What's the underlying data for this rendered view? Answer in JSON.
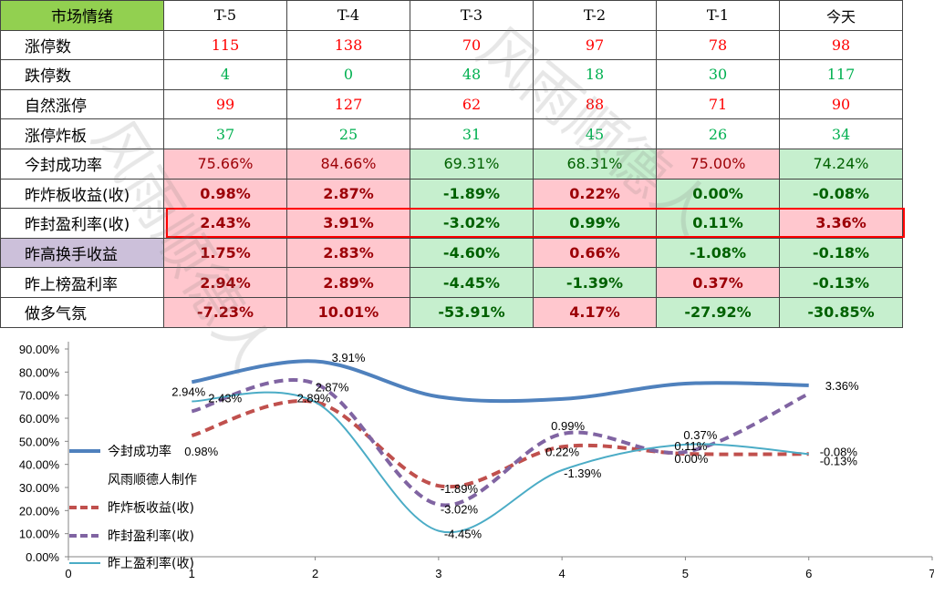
{
  "table": {
    "header": [
      "市场情绪",
      "T-5",
      "T-4",
      "T-3",
      "T-2",
      "T-1",
      "今天"
    ],
    "count_rows": [
      {
        "label": "涨停数",
        "values": [
          "115",
          "138",
          "70",
          "97",
          "78",
          "98"
        ],
        "color": "red"
      },
      {
        "label": "跌停数",
        "values": [
          "4",
          "0",
          "48",
          "18",
          "30",
          "117"
        ],
        "color": "green"
      },
      {
        "label": "自然涨停",
        "values": [
          "99",
          "127",
          "62",
          "88",
          "71",
          "90"
        ],
        "color": "red"
      },
      {
        "label": "涨停炸板",
        "values": [
          "37",
          "25",
          "31",
          "45",
          "26",
          "34"
        ],
        "color": "green"
      }
    ],
    "pct_rows": [
      {
        "label": "今封成功率",
        "values": [
          "75.66%",
          "84.66%",
          "69.31%",
          "68.31%",
          "75.00%",
          "74.24%"
        ],
        "signs": [
          "pos",
          "pos",
          "neg",
          "neg",
          "pos",
          "neg"
        ],
        "bold": false,
        "label_purple": false
      },
      {
        "label": "昨炸板收益(收)",
        "values": [
          "0.98%",
          "2.87%",
          "-1.89%",
          "0.22%",
          "0.00%",
          "-0.08%"
        ],
        "signs": [
          "pos",
          "pos",
          "neg",
          "pos",
          "neg",
          "neg"
        ],
        "bold": true,
        "label_purple": false
      },
      {
        "label": "昨封盈利率(收)",
        "values": [
          "2.43%",
          "3.91%",
          "-3.02%",
          "0.99%",
          "0.11%",
          "3.36%"
        ],
        "signs": [
          "pos",
          "pos",
          "neg",
          "neg",
          "neg",
          "pos"
        ],
        "bold": true,
        "label_purple": false
      },
      {
        "label": "昨高换手收益",
        "values": [
          "1.75%",
          "2.83%",
          "-4.60%",
          "0.66%",
          "-1.08%",
          "-0.18%"
        ],
        "signs": [
          "pos",
          "pos",
          "neg",
          "pos",
          "neg",
          "neg"
        ],
        "bold": true,
        "label_purple": true
      },
      {
        "label": "昨上榜盈利率",
        "values": [
          "2.94%",
          "2.89%",
          "-4.45%",
          "-1.39%",
          "0.37%",
          "-0.13%"
        ],
        "signs": [
          "pos",
          "pos",
          "neg",
          "neg",
          "pos",
          "neg"
        ],
        "bold": true,
        "label_purple": false
      },
      {
        "label": "做多气氛",
        "values": [
          "-7.23%",
          "10.01%",
          "-53.91%",
          "4.17%",
          "-27.92%",
          "-30.85%"
        ],
        "signs": [
          "pos",
          "pos",
          "neg",
          "pos",
          "neg",
          "neg"
        ],
        "bold": true,
        "label_purple": false
      }
    ],
    "colors": {
      "header_green": "#92d050",
      "pos_fill": "#ffc7ce",
      "pos_text": "#9c0006",
      "neg_fill": "#c6efce",
      "neg_text": "#006100",
      "purple_fill": "#ccc0da",
      "highlight_border": "#ff0000"
    }
  },
  "watermark": "风雨顺德人",
  "chart_data": {
    "type": "line",
    "x": [
      1,
      2,
      3,
      4,
      5,
      6
    ],
    "xlim": [
      0,
      7
    ],
    "ylim": [
      0,
      90
    ],
    "y_ticks": [
      "0.00%",
      "10.00%",
      "20.00%",
      "30.00%",
      "40.00%",
      "50.00%",
      "60.00%",
      "70.00%",
      "80.00%",
      "90.00%"
    ],
    "x_ticks": [
      "0",
      "1",
      "2",
      "3",
      "4",
      "5",
      "6",
      "7"
    ],
    "smooth": true,
    "grid": false,
    "legend_position": "left",
    "legend_note": "风雨顺德人制作",
    "series": [
      {
        "name": "今封成功率",
        "values": [
          75.66,
          84.66,
          69.31,
          68.31,
          75.0,
          74.24
        ],
        "color": "#4f81bd",
        "dash": "solid",
        "width": 4,
        "labels": [
          "",
          "",
          "",
          "",
          "",
          ""
        ]
      },
      {
        "name": "昨炸板收益(收)",
        "values": [
          52.5,
          67.0,
          30.7,
          47.6,
          44.6,
          44.5
        ],
        "color": "#c0504d",
        "dash": "dashed",
        "width": 4,
        "labels": [
          "0.98%",
          "2.87%",
          "-1.89%",
          "0.22%",
          "0.00%",
          "-0.08%"
        ]
      },
      {
        "name": "昨封盈利率(收)",
        "values": [
          63.0,
          75.0,
          22.6,
          53.2,
          45.4,
          70.6
        ],
        "color": "#8064a2",
        "dash": "dashed",
        "width": 4,
        "labels": [
          "2.43%",
          "3.91%",
          "-3.02%",
          "0.99%",
          "0.11%",
          "3.36%"
        ]
      },
      {
        "name": "昨上盈利率(收)",
        "values": [
          67.3,
          67.0,
          11.2,
          37.5,
          48.6,
          44.5
        ],
        "color": "#4bacc6",
        "dash": "solid",
        "width": 2,
        "labels": [
          "2.94%",
          "2.89%",
          "-4.45%",
          "-1.39%",
          "0.37%",
          "-0.13%"
        ]
      }
    ]
  }
}
